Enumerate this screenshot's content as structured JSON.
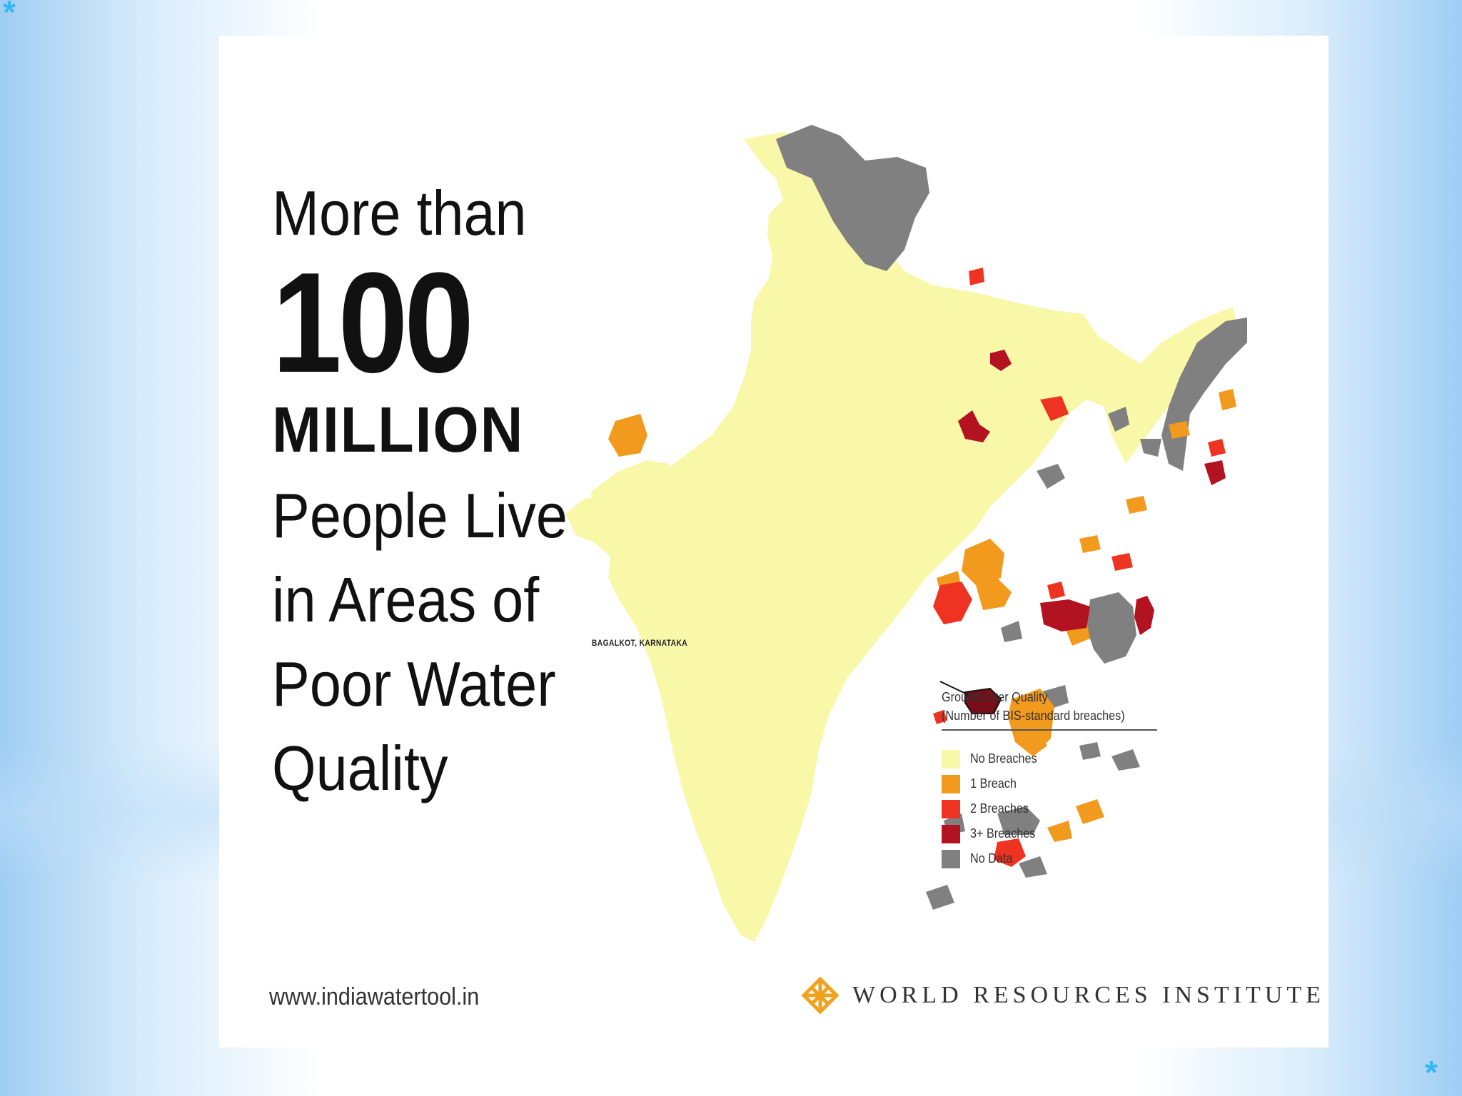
{
  "headline": {
    "line1": "More than",
    "line2": "100",
    "line3": "MILLION",
    "line4": "People Live",
    "line5": "in Areas of",
    "line6": "Poor Water",
    "line7": "Quality"
  },
  "map": {
    "region": "India",
    "callout": "BAGALKOT, KARNATAKA",
    "legend": {
      "title": "Groundwater Quality",
      "subtitle": "(Number of BIS-standard breaches)",
      "items": [
        {
          "label": "No Breaches",
          "color": "#f8f8a8"
        },
        {
          "label": "1 Breach",
          "color": "#f29a1e"
        },
        {
          "label": "2 Breaches",
          "color": "#ee3322"
        },
        {
          "label": "3+ Breaches",
          "color": "#b31220"
        },
        {
          "label": "No Data",
          "color": "#808080"
        }
      ]
    }
  },
  "footer": {
    "url": "www.indiawatertool.in",
    "org": "WORLD RESOURCES INSTITUTE"
  },
  "decor": {
    "corner_mark": "*"
  }
}
